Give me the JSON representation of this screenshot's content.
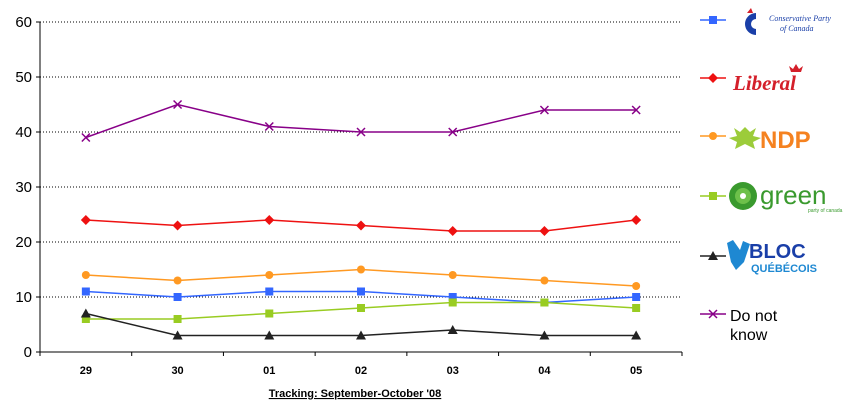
{
  "chart_data": {
    "type": "line",
    "x": [
      "29",
      "30",
      "01",
      "02",
      "03",
      "04",
      "05"
    ],
    "xlabel": "Tracking: September-October '08",
    "ylim": [
      0,
      60
    ],
    "yticks": [
      0,
      10,
      20,
      30,
      40,
      50,
      60
    ],
    "grid": "horizontal-dotted",
    "legend_placement": "right",
    "series": [
      {
        "name": "Conservative Party of Canada",
        "color": "#3366ff",
        "marker": "square",
        "values": [
          11,
          10,
          11,
          11,
          10,
          9,
          10
        ]
      },
      {
        "name": "Liberal",
        "color": "#ee1111",
        "marker": "diamond",
        "values": [
          24,
          23,
          24,
          23,
          22,
          22,
          24
        ]
      },
      {
        "name": "NDP",
        "color": "#ff9922",
        "marker": "circle",
        "values": [
          14,
          13,
          14,
          15,
          14,
          13,
          12
        ]
      },
      {
        "name": "green",
        "color": "#99cc22",
        "marker": "square",
        "values": [
          6,
          6,
          7,
          8,
          9,
          9,
          8
        ]
      },
      {
        "name": "BLOC QUÉBÉCOIS",
        "color": "#222222",
        "marker": "triangle",
        "values": [
          7,
          3,
          3,
          3,
          4,
          3,
          3
        ]
      },
      {
        "name": "Do not know",
        "color": "#880088",
        "marker": "x",
        "values": [
          39,
          45,
          41,
          40,
          40,
          44,
          44
        ]
      }
    ]
  },
  "legend": {
    "conservative_line1": "Conservative Party",
    "conservative_line2": "of Canada",
    "liberal": "Liberal",
    "ndp": "NDP",
    "green": "green",
    "green_sub": "party of canada",
    "bloc_line1": "BLOC",
    "bloc_line2": "QUÉBÉCOIS",
    "dnk_line1": "Do not",
    "dnk_line2": "know"
  }
}
